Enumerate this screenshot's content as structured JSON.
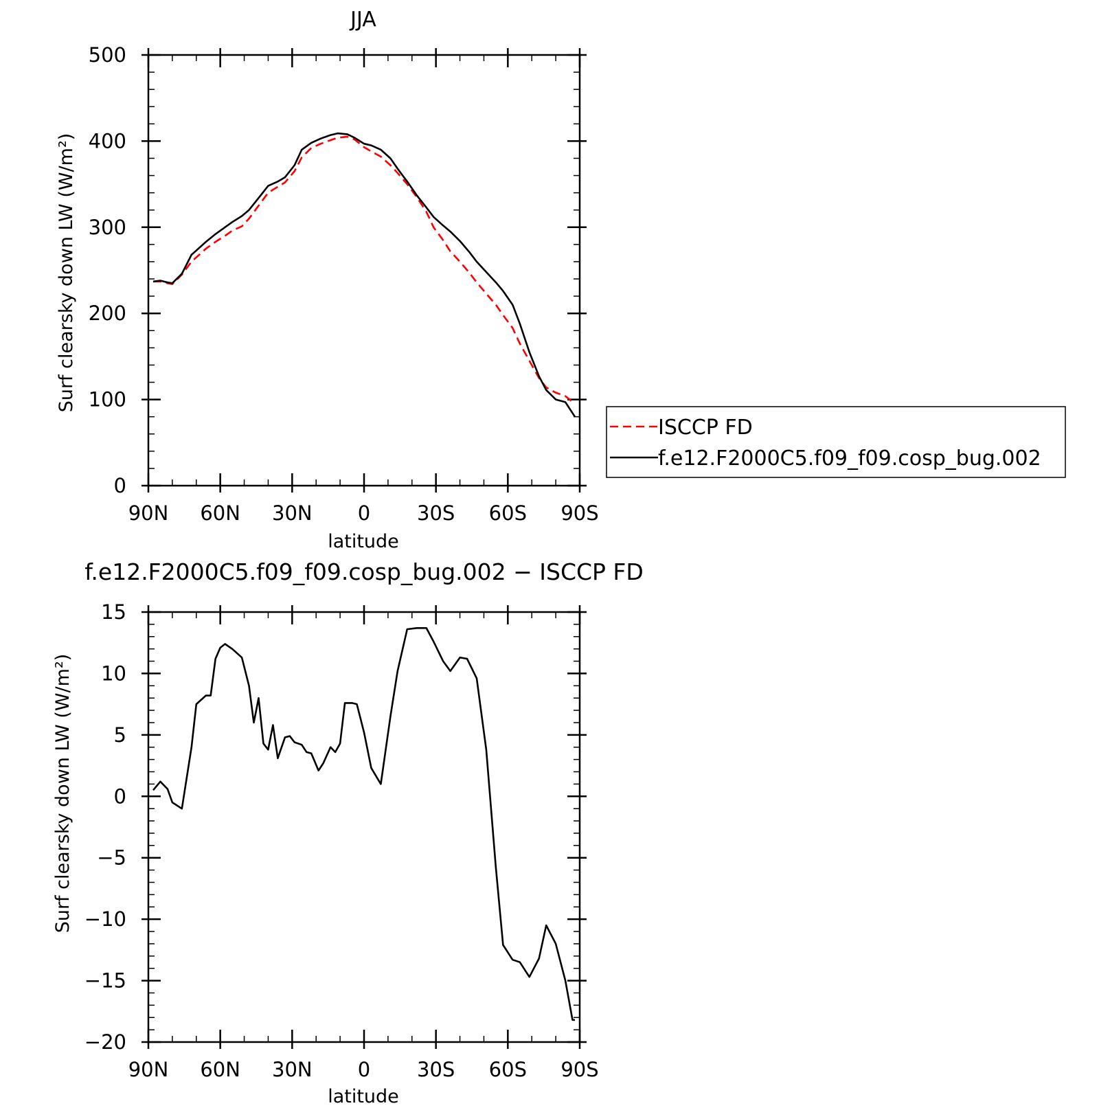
{
  "chart_data": [
    {
      "type": "line",
      "title": "JJA",
      "xlabel": "latitude",
      "ylabel": "Surf clearsky down LW (W/m²)",
      "xlim": [
        90,
        -90
      ],
      "ylim": [
        0,
        500
      ],
      "xticks": [
        90,
        60,
        30,
        0,
        -30,
        -60,
        -90
      ],
      "xtick_labels": [
        "90N",
        "60N",
        "30N",
        "0",
        "30S",
        "60S",
        "90S"
      ],
      "yticks": [
        0,
        100,
        200,
        300,
        400,
        500
      ],
      "ytick_labels": [
        "0",
        "100",
        "200",
        "300",
        "400",
        "500"
      ],
      "grid": false,
      "legend_position": "right, outside plot",
      "series": [
        {
          "name": "ISCCP FD",
          "color": "#ff0000",
          "dash": "dashed",
          "x": [
            88,
            85,
            82,
            80,
            76,
            72,
            70,
            66,
            62,
            58,
            55,
            51,
            48,
            44,
            40,
            36,
            33,
            29,
            26,
            22,
            18,
            14,
            11,
            7,
            4,
            0,
            -3,
            -7,
            -11,
            -14,
            -18,
            -22,
            -26,
            -29,
            -33,
            -36,
            -40,
            -44,
            -47,
            -51,
            -55,
            -58,
            -62,
            -65,
            -69,
            -73,
            -76,
            -80,
            -84,
            -88
          ],
          "y": [
            237,
            237,
            235,
            234,
            245,
            260,
            265,
            275,
            283,
            290,
            296,
            301,
            310,
            325,
            340,
            347,
            352,
            365,
            381,
            392,
            397,
            401,
            404,
            405,
            402,
            393,
            388,
            382,
            372,
            363,
            350,
            335,
            318,
            300,
            285,
            272,
            260,
            247,
            236,
            223,
            210,
            198,
            183,
            165,
            145,
            125,
            114,
            108,
            104,
            95
          ]
        },
        {
          "name": "f.e12.F2000C5.f09_f09.cosp_bug.002",
          "color": "#000000",
          "dash": "solid",
          "x": [
            88,
            85,
            82,
            80,
            76,
            72,
            70,
            66,
            62,
            58,
            55,
            51,
            48,
            44,
            40,
            36,
            33,
            29,
            26,
            22,
            18,
            14,
            11,
            7,
            4,
            0,
            -3,
            -7,
            -11,
            -14,
            -18,
            -22,
            -26,
            -29,
            -33,
            -36,
            -40,
            -44,
            -47,
            -51,
            -55,
            -58,
            -62,
            -65,
            -69,
            -73,
            -76,
            -80,
            -84,
            -88
          ],
          "y": [
            237,
            238,
            236,
            235,
            246,
            268,
            273,
            283,
            292,
            300,
            306,
            313,
            320,
            334,
            348,
            353,
            358,
            372,
            390,
            398,
            403,
            407,
            409,
            408,
            404,
            397,
            395,
            390,
            380,
            368,
            353,
            337,
            323,
            312,
            302,
            295,
            284,
            271,
            260,
            248,
            236,
            226,
            210,
            188,
            155,
            127,
            111,
            100,
            97,
            80
          ]
        }
      ]
    },
    {
      "type": "line",
      "title": "f.e12.F2000C5.f09_f09.cosp_bug.002 − ISCCP FD",
      "xlabel": "latitude",
      "ylabel": "Surf clearsky down LW (W/m²)",
      "xlim": [
        90,
        -90
      ],
      "ylim": [
        -20,
        15
      ],
      "xticks": [
        90,
        60,
        30,
        0,
        -30,
        -60,
        -90
      ],
      "xtick_labels": [
        "90N",
        "60N",
        "30N",
        "0",
        "30S",
        "60S",
        "90S"
      ],
      "yticks": [
        -20,
        -15,
        -10,
        -5,
        0,
        5,
        10,
        15
      ],
      "ytick_labels": [
        "−20",
        "−15",
        "−10",
        "−5",
        "0",
        "5",
        "10",
        "15"
      ],
      "grid": false,
      "series": [
        {
          "color": "#000000",
          "dash": "solid",
          "x": [
            88,
            85,
            82,
            80,
            76,
            72,
            70,
            66,
            64,
            62,
            60,
            58,
            55,
            51,
            48,
            46,
            44,
            42,
            40,
            38,
            36,
            33,
            31,
            29,
            26,
            24,
            22,
            19,
            17,
            14,
            12,
            10,
            8,
            5,
            3,
            0,
            -3,
            -7,
            -11,
            -14,
            -18,
            -22,
            -26,
            -29,
            -33,
            -36,
            -40,
            -43,
            -47,
            -51,
            -55,
            -58,
            -62,
            -65,
            -69,
            -73,
            -76,
            -80,
            -84,
            -87,
            -88
          ],
          "y": [
            0.5,
            1.2,
            0.6,
            -0.5,
            -1.0,
            4.0,
            7.5,
            8.2,
            8.2,
            11.2,
            12.1,
            12.4,
            12.0,
            11.3,
            9.0,
            6.0,
            8.0,
            4.3,
            3.8,
            5.8,
            3.1,
            4.8,
            4.9,
            4.4,
            4.2,
            3.6,
            3.5,
            2.1,
            2.7,
            4.0,
            3.6,
            4.3,
            7.6,
            7.6,
            7.5,
            5.2,
            2.3,
            1.0,
            6.5,
            10.2,
            13.6,
            13.7,
            13.7,
            12.6,
            11.0,
            10.2,
            11.3,
            11.2,
            9.6,
            3.8,
            -5.8,
            -12.1,
            -13.3,
            -13.5,
            -14.7,
            -13.2,
            -10.5,
            -12.0,
            -15.0,
            -18.2,
            -18.2
          ]
        }
      ]
    }
  ]
}
